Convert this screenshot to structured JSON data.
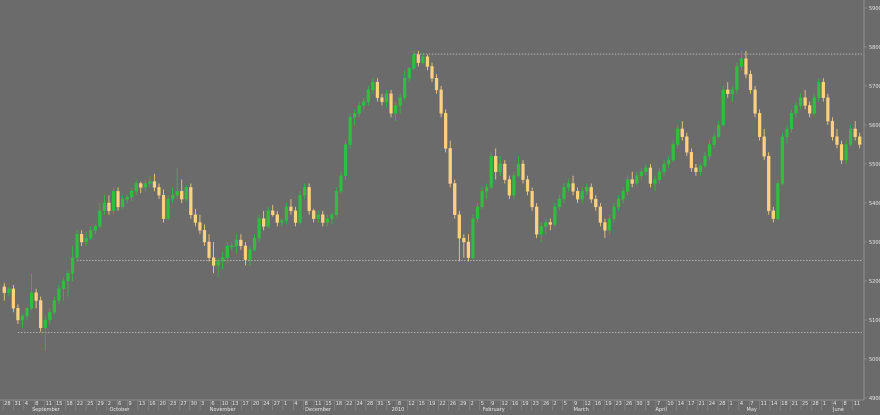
{
  "chart_data": {
    "type": "candlestick",
    "title": "",
    "xlabel": "",
    "ylabel": "",
    "ylim": [
      4900,
      5900
    ],
    "y_ticks": [
      4900,
      5000,
      5100,
      5200,
      5300,
      5400,
      5500,
      5600,
      5700,
      5800,
      5900
    ],
    "grid": false,
    "colors": {
      "background": "#6b6b6b",
      "up": "#2fbf3f",
      "down": "#ffd27f",
      "axis": "#9a9a9a",
      "text": "#e6e6e6",
      "reference": "#dcdcdc"
    },
    "reference_lines": [
      {
        "value": 5782,
        "from": 5782
      },
      {
        "value": 5253,
        "from": 5253
      },
      {
        "value": 5068,
        "from": 5068
      }
    ],
    "month_labels": [
      {
        "label": "September",
        "index": 7
      },
      {
        "label": "October",
        "index": 24
      },
      {
        "label": "November",
        "index": 46
      },
      {
        "label": "December",
        "index": 67
      },
      {
        "label": "2010",
        "index": 86
      },
      {
        "label": "February",
        "index": 106
      },
      {
        "label": "March",
        "index": 126
      },
      {
        "label": "April",
        "index": 144
      },
      {
        "label": "May",
        "index": 164
      },
      {
        "label": "June",
        "index": 183
      }
    ],
    "day_labels": [
      "28",
      "31",
      "4",
      "8",
      "11",
      "15",
      "18",
      "22",
      "25",
      "29",
      "2",
      "6",
      "9",
      "13",
      "16",
      "20",
      "23",
      "27",
      "30",
      "3",
      "6",
      "10",
      "13",
      "17",
      "20",
      "24",
      "27",
      "1",
      "4",
      "8",
      "11",
      "15",
      "18",
      "22",
      "24",
      "28",
      "31",
      "5",
      "8",
      "12",
      "15",
      "19",
      "22",
      "26",
      "29",
      "2",
      "5",
      "9",
      "12",
      "16",
      "19",
      "23",
      "26",
      "2",
      "5",
      "9",
      "12",
      "16",
      "19",
      "23",
      "26",
      "30",
      "3",
      "7",
      "10",
      "14",
      "17",
      "21",
      "24",
      "28",
      "1",
      "4",
      "7",
      "11",
      "14",
      "18",
      "21",
      "25",
      "28",
      "1",
      "4",
      "8",
      "11"
    ],
    "candles": [
      [
        5185,
        5195,
        5150,
        5170
      ],
      [
        5170,
        5185,
        5160,
        5180
      ],
      [
        5180,
        5190,
        5120,
        5130
      ],
      [
        5130,
        5140,
        5090,
        5100
      ],
      [
        5100,
        5115,
        5080,
        5110
      ],
      [
        5110,
        5135,
        5100,
        5130
      ],
      [
        5130,
        5220,
        5125,
        5170
      ],
      [
        5170,
        5180,
        5130,
        5150
      ],
      [
        5150,
        5160,
        5070,
        5080
      ],
      [
        5080,
        5110,
        5020,
        5100
      ],
      [
        5100,
        5130,
        5090,
        5120
      ],
      [
        5120,
        5160,
        5115,
        5150
      ],
      [
        5150,
        5190,
        5140,
        5180
      ],
      [
        5180,
        5210,
        5150,
        5200
      ],
      [
        5200,
        5225,
        5160,
        5220
      ],
      [
        5220,
        5290,
        5200,
        5260
      ],
      [
        5260,
        5330,
        5250,
        5320
      ],
      [
        5320,
        5330,
        5290,
        5300
      ],
      [
        5300,
        5325,
        5290,
        5310
      ],
      [
        5310,
        5340,
        5305,
        5330
      ],
      [
        5330,
        5345,
        5320,
        5340
      ],
      [
        5340,
        5400,
        5335,
        5380
      ],
      [
        5380,
        5420,
        5370,
        5400
      ],
      [
        5400,
        5420,
        5370,
        5380
      ],
      [
        5380,
        5440,
        5370,
        5430
      ],
      [
        5430,
        5440,
        5380,
        5390
      ],
      [
        5390,
        5420,
        5385,
        5410
      ],
      [
        5410,
        5420,
        5400,
        5415
      ],
      [
        5415,
        5440,
        5405,
        5430
      ],
      [
        5430,
        5460,
        5420,
        5450
      ],
      [
        5450,
        5455,
        5425,
        5440
      ],
      [
        5440,
        5460,
        5430,
        5450
      ],
      [
        5450,
        5470,
        5440,
        5455
      ],
      [
        5455,
        5475,
        5430,
        5440
      ],
      [
        5440,
        5450,
        5410,
        5420
      ],
      [
        5420,
        5435,
        5350,
        5360
      ],
      [
        5360,
        5420,
        5355,
        5410
      ],
      [
        5410,
        5440,
        5400,
        5420
      ],
      [
        5420,
        5490,
        5410,
        5430
      ],
      [
        5430,
        5460,
        5400,
        5410
      ],
      [
        5410,
        5445,
        5405,
        5440
      ],
      [
        5440,
        5450,
        5360,
        5370
      ],
      [
        5370,
        5385,
        5340,
        5350
      ],
      [
        5350,
        5370,
        5320,
        5330
      ],
      [
        5330,
        5345,
        5290,
        5300
      ],
      [
        5300,
        5320,
        5250,
        5260
      ],
      [
        5260,
        5300,
        5220,
        5240
      ],
      [
        5240,
        5260,
        5210,
        5250
      ],
      [
        5250,
        5275,
        5230,
        5260
      ],
      [
        5260,
        5300,
        5245,
        5290
      ],
      [
        5290,
        5300,
        5280,
        5290
      ],
      [
        5290,
        5320,
        5270,
        5305
      ],
      [
        5305,
        5320,
        5280,
        5290
      ],
      [
        5290,
        5300,
        5240,
        5255
      ],
      [
        5255,
        5290,
        5240,
        5280
      ],
      [
        5280,
        5320,
        5275,
        5310
      ],
      [
        5310,
        5370,
        5300,
        5360
      ],
      [
        5360,
        5380,
        5330,
        5340
      ],
      [
        5340,
        5390,
        5335,
        5380
      ],
      [
        5380,
        5395,
        5365,
        5370
      ],
      [
        5370,
        5380,
        5340,
        5350
      ],
      [
        5350,
        5360,
        5340,
        5355
      ],
      [
        5355,
        5400,
        5345,
        5390
      ],
      [
        5390,
        5410,
        5370,
        5380
      ],
      [
        5380,
        5390,
        5340,
        5350
      ],
      [
        5350,
        5430,
        5345,
        5420
      ],
      [
        5420,
        5450,
        5410,
        5440
      ],
      [
        5440,
        5450,
        5370,
        5380
      ],
      [
        5380,
        5385,
        5350,
        5360
      ],
      [
        5360,
        5380,
        5350,
        5370
      ],
      [
        5370,
        5380,
        5340,
        5350
      ],
      [
        5350,
        5370,
        5340,
        5360
      ],
      [
        5360,
        5375,
        5345,
        5370
      ],
      [
        5370,
        5440,
        5365,
        5430
      ],
      [
        5430,
        5480,
        5425,
        5470
      ],
      [
        5470,
        5560,
        5460,
        5550
      ],
      [
        5550,
        5630,
        5540,
        5620
      ],
      [
        5620,
        5640,
        5600,
        5630
      ],
      [
        5630,
        5660,
        5620,
        5650
      ],
      [
        5650,
        5670,
        5640,
        5660
      ],
      [
        5660,
        5700,
        5650,
        5690
      ],
      [
        5690,
        5720,
        5680,
        5710
      ],
      [
        5710,
        5720,
        5660,
        5670
      ],
      [
        5670,
        5680,
        5650,
        5660
      ],
      [
        5660,
        5690,
        5645,
        5680
      ],
      [
        5680,
        5690,
        5620,
        5630
      ],
      [
        5630,
        5660,
        5610,
        5650
      ],
      [
        5650,
        5680,
        5630,
        5670
      ],
      [
        5670,
        5740,
        5665,
        5720
      ],
      [
        5720,
        5750,
        5710,
        5745
      ],
      [
        5745,
        5790,
        5740,
        5780
      ],
      [
        5780,
        5790,
        5750,
        5760
      ],
      [
        5760,
        5785,
        5755,
        5775
      ],
      [
        5775,
        5780,
        5740,
        5750
      ],
      [
        5750,
        5760,
        5710,
        5720
      ],
      [
        5720,
        5730,
        5680,
        5690
      ],
      [
        5690,
        5700,
        5620,
        5630
      ],
      [
        5630,
        5640,
        5530,
        5540
      ],
      [
        5540,
        5560,
        5440,
        5450
      ],
      [
        5450,
        5460,
        5360,
        5370
      ],
      [
        5370,
        5380,
        5250,
        5310
      ],
      [
        5310,
        5320,
        5260,
        5300
      ],
      [
        5300,
        5320,
        5250,
        5260
      ],
      [
        5260,
        5370,
        5255,
        5360
      ],
      [
        5360,
        5400,
        5350,
        5390
      ],
      [
        5390,
        5440,
        5385,
        5430
      ],
      [
        5430,
        5450,
        5410,
        5440
      ],
      [
        5440,
        5530,
        5435,
        5520
      ],
      [
        5520,
        5540,
        5460,
        5480
      ],
      [
        5480,
        5520,
        5470,
        5500
      ],
      [
        5500,
        5510,
        5450,
        5460
      ],
      [
        5460,
        5470,
        5410,
        5420
      ],
      [
        5420,
        5480,
        5410,
        5470
      ],
      [
        5470,
        5520,
        5465,
        5500
      ],
      [
        5500,
        5510,
        5450,
        5460
      ],
      [
        5460,
        5470,
        5420,
        5430
      ],
      [
        5430,
        5440,
        5380,
        5390
      ],
      [
        5390,
        5400,
        5310,
        5320
      ],
      [
        5320,
        5350,
        5300,
        5340
      ],
      [
        5340,
        5360,
        5320,
        5350
      ],
      [
        5350,
        5360,
        5330,
        5345
      ],
      [
        5345,
        5400,
        5340,
        5390
      ],
      [
        5390,
        5420,
        5380,
        5410
      ],
      [
        5410,
        5450,
        5400,
        5440
      ],
      [
        5440,
        5460,
        5430,
        5450
      ],
      [
        5450,
        5470,
        5420,
        5430
      ],
      [
        5430,
        5440,
        5400,
        5410
      ],
      [
        5410,
        5440,
        5400,
        5430
      ],
      [
        5430,
        5450,
        5420,
        5440
      ],
      [
        5440,
        5450,
        5400,
        5410
      ],
      [
        5410,
        5420,
        5380,
        5390
      ],
      [
        5390,
        5400,
        5340,
        5350
      ],
      [
        5350,
        5360,
        5310,
        5330
      ],
      [
        5330,
        5370,
        5320,
        5360
      ],
      [
        5360,
        5400,
        5350,
        5390
      ],
      [
        5390,
        5420,
        5380,
        5410
      ],
      [
        5410,
        5440,
        5400,
        5430
      ],
      [
        5430,
        5470,
        5420,
        5460
      ],
      [
        5460,
        5480,
        5440,
        5450
      ],
      [
        5450,
        5480,
        5445,
        5470
      ],
      [
        5470,
        5490,
        5460,
        5480
      ],
      [
        5480,
        5500,
        5470,
        5490
      ],
      [
        5490,
        5500,
        5440,
        5450
      ],
      [
        5450,
        5470,
        5430,
        5460
      ],
      [
        5460,
        5490,
        5450,
        5480
      ],
      [
        5480,
        5510,
        5470,
        5500
      ],
      [
        5500,
        5520,
        5490,
        5510
      ],
      [
        5510,
        5560,
        5505,
        5550
      ],
      [
        5550,
        5600,
        5540,
        5590
      ],
      [
        5590,
        5610,
        5560,
        5570
      ],
      [
        5570,
        5580,
        5520,
        5530
      ],
      [
        5530,
        5540,
        5480,
        5490
      ],
      [
        5490,
        5500,
        5470,
        5480
      ],
      [
        5480,
        5500,
        5470,
        5495
      ],
      [
        5495,
        5530,
        5490,
        5520
      ],
      [
        5520,
        5560,
        5510,
        5550
      ],
      [
        5550,
        5580,
        5540,
        5570
      ],
      [
        5570,
        5610,
        5565,
        5600
      ],
      [
        5600,
        5700,
        5595,
        5690
      ],
      [
        5690,
        5710,
        5670,
        5680
      ],
      [
        5680,
        5700,
        5660,
        5690
      ],
      [
        5690,
        5760,
        5680,
        5750
      ],
      [
        5750,
        5790,
        5740,
        5770
      ],
      [
        5770,
        5790,
        5720,
        5730
      ],
      [
        5730,
        5740,
        5680,
        5690
      ],
      [
        5690,
        5700,
        5620,
        5630
      ],
      [
        5630,
        5640,
        5560,
        5570
      ],
      [
        5570,
        5590,
        5510,
        5520
      ],
      [
        5520,
        5530,
        5370,
        5380
      ],
      [
        5380,
        5390,
        5350,
        5360
      ],
      [
        5360,
        5460,
        5355,
        5450
      ],
      [
        5450,
        5580,
        5445,
        5570
      ],
      [
        5570,
        5600,
        5550,
        5590
      ],
      [
        5590,
        5640,
        5580,
        5630
      ],
      [
        5630,
        5660,
        5620,
        5650
      ],
      [
        5650,
        5680,
        5640,
        5670
      ],
      [
        5670,
        5690,
        5640,
        5650
      ],
      [
        5650,
        5660,
        5620,
        5630
      ],
      [
        5630,
        5680,
        5625,
        5670
      ],
      [
        5670,
        5720,
        5660,
        5710
      ],
      [
        5710,
        5720,
        5660,
        5670
      ],
      [
        5670,
        5680,
        5600,
        5610
      ],
      [
        5610,
        5620,
        5560,
        5570
      ],
      [
        5570,
        5590,
        5540,
        5550
      ],
      [
        5550,
        5560,
        5500,
        5510
      ],
      [
        5510,
        5560,
        5500,
        5550
      ],
      [
        5550,
        5600,
        5545,
        5590
      ],
      [
        5590,
        5610,
        5560,
        5570
      ],
      [
        5570,
        5580,
        5540,
        5550
      ]
    ]
  }
}
